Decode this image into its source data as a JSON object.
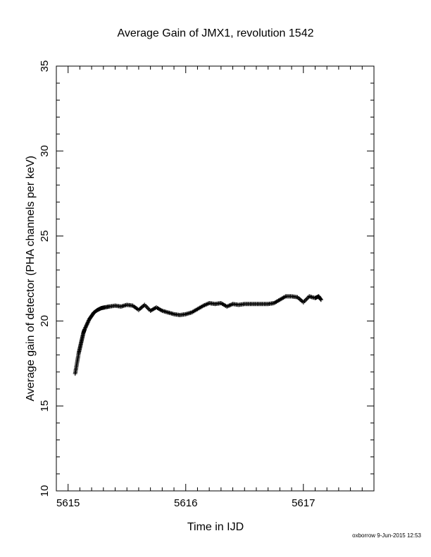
{
  "chart_data": {
    "type": "scatter",
    "title": "Average Gain of JMX1, revolution 1542",
    "xlabel": "Time in IJD",
    "ylabel": "Average gain of detector (PHA channels per keV)",
    "xlim": [
      5614.9,
      5617.6
    ],
    "ylim": [
      10,
      35
    ],
    "x_ticks": [
      5615,
      5616,
      5617
    ],
    "x_tick_labels": [
      "5615",
      "5616",
      "5617"
    ],
    "y_ticks": [
      10,
      15,
      20,
      25,
      30,
      35
    ],
    "y_tick_labels": [
      "10",
      "15",
      "20",
      "25",
      "30",
      "35"
    ],
    "marker": "plus",
    "grid": false,
    "series": [
      {
        "x": [
          5615.06,
          5615.07,
          5615.08,
          5615.09,
          5615.1,
          5615.11,
          5615.12,
          5615.13,
          5615.14,
          5615.16,
          5615.18,
          5615.2,
          5615.22,
          5615.25,
          5615.28,
          5615.31,
          5615.35,
          5615.4,
          5615.45,
          5615.5,
          5615.55,
          5615.6,
          5615.65,
          5615.7,
          5615.75,
          5615.8,
          5615.85,
          5615.9,
          5615.95,
          5616.0,
          5616.05,
          5616.1,
          5616.15,
          5616.2,
          5616.25,
          5616.3,
          5616.35,
          5616.4,
          5616.45,
          5616.5,
          5616.55,
          5616.6,
          5616.65,
          5616.7,
          5616.75,
          5616.8,
          5616.85,
          5616.9,
          5616.95,
          5617.0,
          5617.05,
          5617.1,
          5617.13,
          5617.15
        ],
        "y": [
          16.9,
          17.3,
          17.7,
          18.1,
          18.4,
          18.7,
          19.0,
          19.3,
          19.5,
          19.8,
          20.1,
          20.3,
          20.5,
          20.65,
          20.75,
          20.8,
          20.85,
          20.9,
          20.85,
          20.95,
          20.9,
          20.65,
          20.95,
          20.6,
          20.8,
          20.6,
          20.5,
          20.4,
          20.35,
          20.4,
          20.5,
          20.7,
          20.9,
          21.05,
          21.0,
          21.05,
          20.85,
          21.0,
          20.95,
          21.0,
          21.0,
          21.0,
          21.0,
          21.0,
          21.05,
          21.25,
          21.45,
          21.45,
          21.4,
          21.1,
          21.45,
          21.35,
          21.45,
          21.25
        ]
      }
    ]
  },
  "footer": "oxborrow  9-Jun-2015 12:53"
}
